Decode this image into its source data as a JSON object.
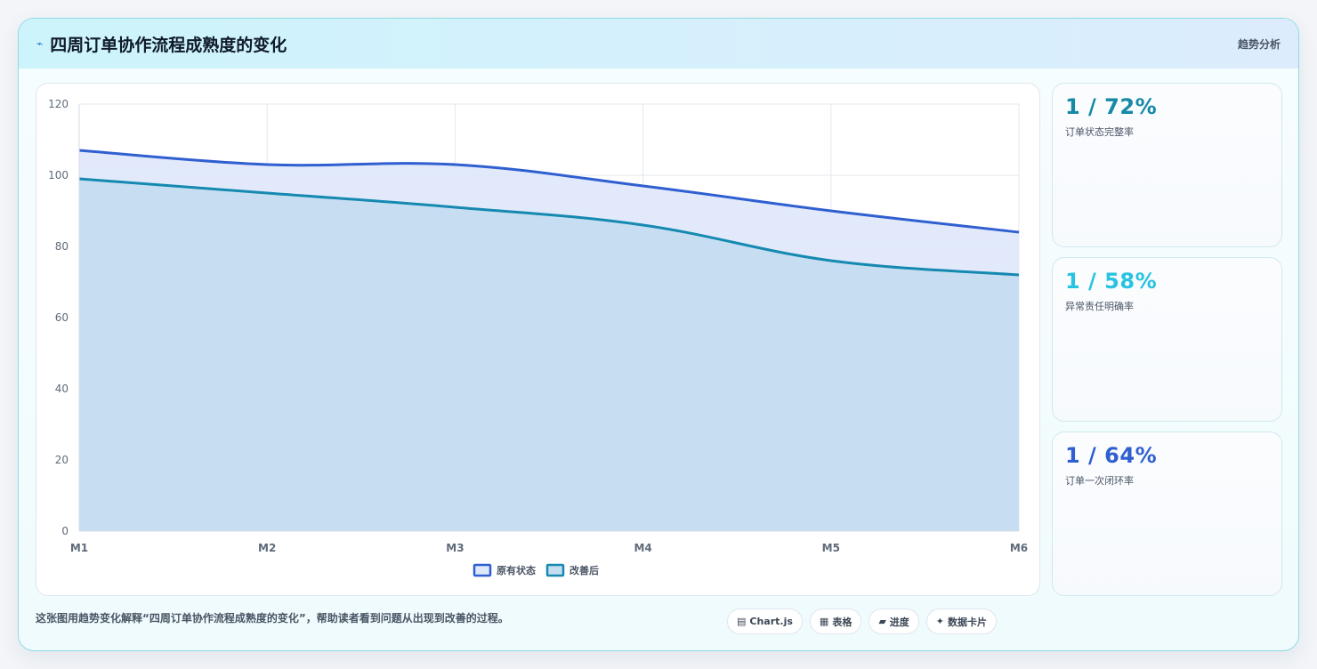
{
  "header": {
    "title": "四周订单协作流程成熟度的变化",
    "title_icon": "trend-line-icon",
    "tag": "趋势分析"
  },
  "chart_data": {
    "type": "area",
    "x": [
      "M1",
      "M2",
      "M3",
      "M4",
      "M5",
      "M6"
    ],
    "ylim": [
      0,
      120
    ],
    "yticks": [
      0,
      20,
      40,
      60,
      80,
      100,
      120
    ],
    "grid": true,
    "legend_position": "bottom-center",
    "series": [
      {
        "name": "原有状态",
        "values": [
          107,
          103,
          103,
          97,
          90,
          84
        ],
        "color": "#2f5fd0",
        "fill": "#dfe8fb"
      },
      {
        "name": "改善后",
        "values": [
          99,
          95,
          91,
          86,
          76,
          72
        ],
        "color": "#1589b0",
        "fill": "#c5ddf1"
      }
    ]
  },
  "kpis": [
    {
      "value": "1 / 72%",
      "label": "订单状态完整率",
      "color": "#1589a6"
    },
    {
      "value": "1 / 58%",
      "label": "异常责任明确率",
      "color": "#27c3e0"
    },
    {
      "value": "1 / 64%",
      "label": "订单一次闭环率",
      "color": "#2f5fd0"
    }
  ],
  "footer": {
    "note": "这张图用趋势变化解释“四周订单协作流程成熟度的变化”，帮助读者看到问题从出现到改善的过程。",
    "tags": [
      {
        "icon": "chart-icon",
        "glyph": "▤",
        "label": "Chart.js"
      },
      {
        "icon": "table-icon",
        "glyph": "▦",
        "label": "表格"
      },
      {
        "icon": "progress-icon",
        "glyph": "▰",
        "label": "进度"
      },
      {
        "icon": "sparkle-icon",
        "glyph": "✦",
        "label": "数据卡片"
      }
    ]
  }
}
